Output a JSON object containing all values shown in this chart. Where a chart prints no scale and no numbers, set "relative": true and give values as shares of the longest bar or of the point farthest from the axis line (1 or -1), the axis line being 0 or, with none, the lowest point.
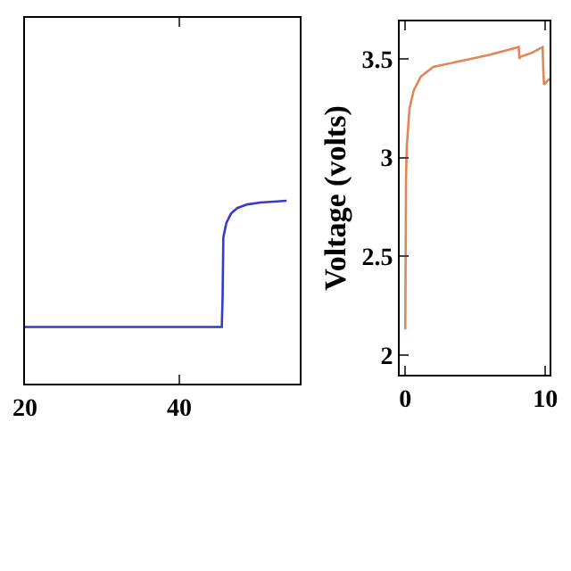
{
  "chart_data": [
    {
      "type": "line",
      "relative": true,
      "tick_labels": "x",
      "xlim": [
        20,
        55.6
      ],
      "xticks": [
        20,
        40
      ],
      "grid": false,
      "marker": "none",
      "line_style": "solid",
      "series": [
        {
          "color": "#3a3ac8",
          "x": [
            20,
            45.5,
            45.6,
            45.7,
            46.1,
            46.7,
            47.5,
            48.8,
            50.5,
            53.9
          ],
          "values": [
            0.31,
            0.31,
            0.47,
            0.8,
            0.88,
            0.93,
            0.96,
            0.98,
            0.99,
            1
          ]
        }
      ]
    },
    {
      "type": "line",
      "ylabel": "Voltage (volts)",
      "xlim": [
        -0.4,
        10.3
      ],
      "ylim": [
        1.9,
        3.69
      ],
      "xticks": [
        0,
        10
      ],
      "yticks": [
        2,
        2.5,
        3,
        3.5
      ],
      "grid": false,
      "marker": "none",
      "line_style": "solid",
      "series": [
        {
          "color": "#e0865a",
          "x": [
            0,
            0.05,
            0.1,
            0.3,
            0.6,
            1.1,
            2,
            4,
            6,
            8.1,
            8.15,
            8.2,
            9,
            9.8,
            9.85,
            9.9,
            10.3
          ],
          "values": [
            2.13,
            2.89,
            3.05,
            3.25,
            3.34,
            3.41,
            3.46,
            3.49,
            3.52,
            3.56,
            3.5,
            3.51,
            3.53,
            3.56,
            3.45,
            3.37,
            3.4
          ]
        }
      ]
    }
  ]
}
